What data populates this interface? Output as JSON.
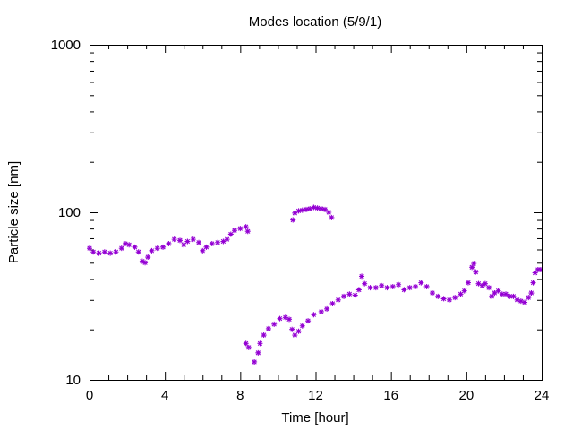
{
  "chart_data": {
    "type": "scatter",
    "title": "Modes location (5/9/1)",
    "xlabel": "Time [hour]",
    "ylabel": "Particle size [nm]",
    "xlim": [
      0,
      24
    ],
    "ylim": [
      10,
      1000
    ],
    "y_scale": "log",
    "grid": false,
    "legend": "none",
    "x_ticks": [
      "0",
      "4",
      "8",
      "12",
      "16",
      "20",
      "24"
    ],
    "y_ticks": [
      "10",
      "100",
      "1000"
    ],
    "marker_color": "#9400d3",
    "marker": "asterisk",
    "series": [
      {
        "points": [
          [
            0.0,
            61
          ],
          [
            0.2,
            58
          ],
          [
            0.5,
            57
          ],
          [
            0.8,
            58
          ],
          [
            1.1,
            57
          ],
          [
            1.4,
            58
          ],
          [
            1.7,
            61
          ],
          [
            1.9,
            65
          ],
          [
            2.1,
            64
          ],
          [
            2.4,
            62
          ],
          [
            2.6,
            58
          ],
          [
            2.8,
            51
          ],
          [
            2.95,
            50
          ],
          [
            3.1,
            54
          ],
          [
            3.3,
            59
          ],
          [
            3.6,
            61
          ],
          [
            3.9,
            62
          ],
          [
            4.2,
            65
          ],
          [
            4.5,
            69
          ],
          [
            4.8,
            68
          ],
          [
            5.0,
            64
          ],
          [
            5.2,
            67
          ],
          [
            5.5,
            69
          ],
          [
            5.8,
            66
          ],
          [
            6.0,
            59
          ],
          [
            6.2,
            62
          ],
          [
            6.5,
            65
          ],
          [
            6.8,
            66
          ],
          [
            7.1,
            67
          ],
          [
            7.3,
            69
          ],
          [
            7.5,
            74
          ],
          [
            7.7,
            78
          ],
          [
            8.0,
            80
          ],
          [
            8.3,
            82
          ],
          [
            8.4,
            77
          ],
          [
            8.3,
            16.5
          ],
          [
            8.45,
            15.6
          ],
          [
            8.75,
            12.8
          ],
          [
            8.95,
            14.5
          ],
          [
            9.05,
            16.5
          ],
          [
            9.25,
            18.5
          ],
          [
            9.5,
            20.2
          ],
          [
            9.8,
            21.5
          ],
          [
            10.1,
            23.2
          ],
          [
            10.4,
            23.6
          ],
          [
            10.6,
            23.0
          ],
          [
            10.75,
            20.0
          ],
          [
            10.9,
            18.5
          ],
          [
            11.1,
            19.5
          ],
          [
            11.3,
            21.0
          ],
          [
            11.6,
            22.5
          ],
          [
            11.9,
            24.5
          ],
          [
            12.3,
            25.5
          ],
          [
            12.6,
            26.5
          ],
          [
            12.9,
            28.5
          ],
          [
            13.2,
            30.0
          ],
          [
            13.5,
            31.5
          ],
          [
            13.8,
            32.5
          ],
          [
            14.1,
            32.0
          ],
          [
            14.3,
            34.5
          ],
          [
            14.45,
            41.5
          ],
          [
            14.6,
            37.5
          ],
          [
            14.9,
            35.5
          ],
          [
            15.2,
            35.5
          ],
          [
            15.5,
            36.5
          ],
          [
            15.8,
            35.5
          ],
          [
            16.1,
            36.0
          ],
          [
            16.4,
            37.0
          ],
          [
            16.7,
            34.5
          ],
          [
            17.0,
            35.5
          ],
          [
            17.3,
            36.0
          ],
          [
            17.6,
            38.0
          ],
          [
            17.9,
            36.0
          ],
          [
            18.2,
            33.0
          ],
          [
            18.5,
            31.5
          ],
          [
            18.8,
            30.5
          ],
          [
            19.1,
            30.0
          ],
          [
            19.4,
            31.0
          ],
          [
            19.7,
            32.5
          ],
          [
            19.9,
            34.0
          ],
          [
            20.1,
            38.0
          ],
          [
            20.3,
            47.0
          ],
          [
            20.4,
            49.5
          ],
          [
            20.5,
            44.0
          ],
          [
            20.65,
            37.5
          ],
          [
            20.85,
            36.5
          ],
          [
            21.0,
            37.5
          ],
          [
            21.2,
            35.5
          ],
          [
            21.35,
            31.5
          ],
          [
            21.5,
            33.0
          ],
          [
            21.7,
            34.0
          ],
          [
            21.9,
            32.5
          ],
          [
            22.1,
            32.5
          ],
          [
            22.3,
            31.5
          ],
          [
            22.5,
            31.5
          ],
          [
            22.7,
            30.0
          ],
          [
            22.9,
            29.5
          ],
          [
            23.1,
            29.0
          ],
          [
            23.3,
            31.0
          ],
          [
            23.45,
            33.0
          ],
          [
            23.55,
            38.0
          ],
          [
            23.65,
            43.5
          ],
          [
            23.8,
            45.5
          ],
          [
            23.95,
            45.5
          ],
          [
            10.8,
            90
          ],
          [
            10.9,
            99
          ],
          [
            11.1,
            102
          ],
          [
            11.3,
            103
          ],
          [
            11.5,
            104
          ],
          [
            11.7,
            105
          ],
          [
            11.9,
            107
          ],
          [
            12.1,
            106
          ],
          [
            12.3,
            105
          ],
          [
            12.5,
            104
          ],
          [
            12.7,
            100
          ],
          [
            12.85,
            93
          ]
        ]
      }
    ]
  }
}
